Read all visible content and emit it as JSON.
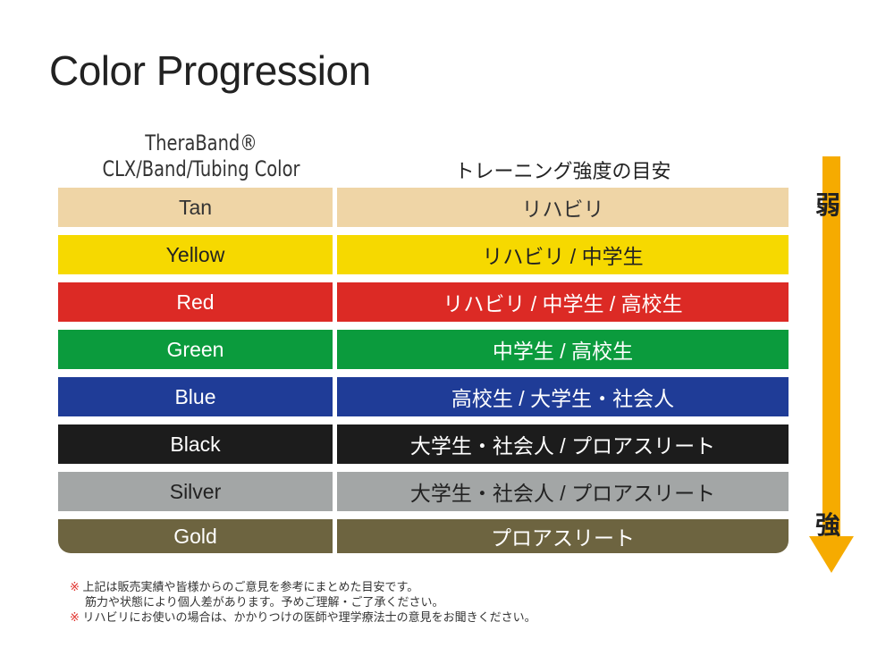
{
  "title": "Color Progression",
  "header": {
    "left_line1": "TheraBand®",
    "left_line2": "CLX/Band/Tubing Color",
    "right": "トレーニング強度の目安"
  },
  "rows": [
    {
      "color": "Tan",
      "level": "リハビリ",
      "bg": "#efd5a6",
      "fg": "#333333"
    },
    {
      "color": "Yellow",
      "level": "リハビリ / 中学生",
      "bg": "#f6d900",
      "fg": "#222222"
    },
    {
      "color": "Red",
      "level": "リハビリ / 中学生 / 高校生",
      "bg": "#dc2a25",
      "fg": "#ffffff"
    },
    {
      "color": "Green",
      "level": "中学生 / 高校生",
      "bg": "#0b9b3d",
      "fg": "#ffffff"
    },
    {
      "color": "Blue",
      "level": "高校生 / 大学生・社会人",
      "bg": "#1f3c97",
      "fg": "#ffffff"
    },
    {
      "color": "Black",
      "level": "大学生・社会人 / プロアスリート",
      "bg": "#1c1c1c",
      "fg": "#ffffff"
    },
    {
      "color": "Silver",
      "level": "大学生・社会人 / プロアスリート",
      "bg": "#a3a6a6",
      "fg": "#222222"
    },
    {
      "color": "Gold",
      "level": "プロアスリート",
      "bg": "#6d6440",
      "fg": "#ffffff"
    }
  ],
  "scale": {
    "weak": "弱",
    "strong": "強",
    "arrow_color": "#f6ab00"
  },
  "notes": {
    "mark": "※",
    "line1": "上記は販売実績や皆様からのご意見を参考にまとめた目安です。",
    "line2": "筋力や状態により個人差があります。予めご理解・ご了承ください。",
    "line3": "リハビリにお使いの場合は、かかりつけの医師や理学療法士の意見をお聞きください。"
  }
}
